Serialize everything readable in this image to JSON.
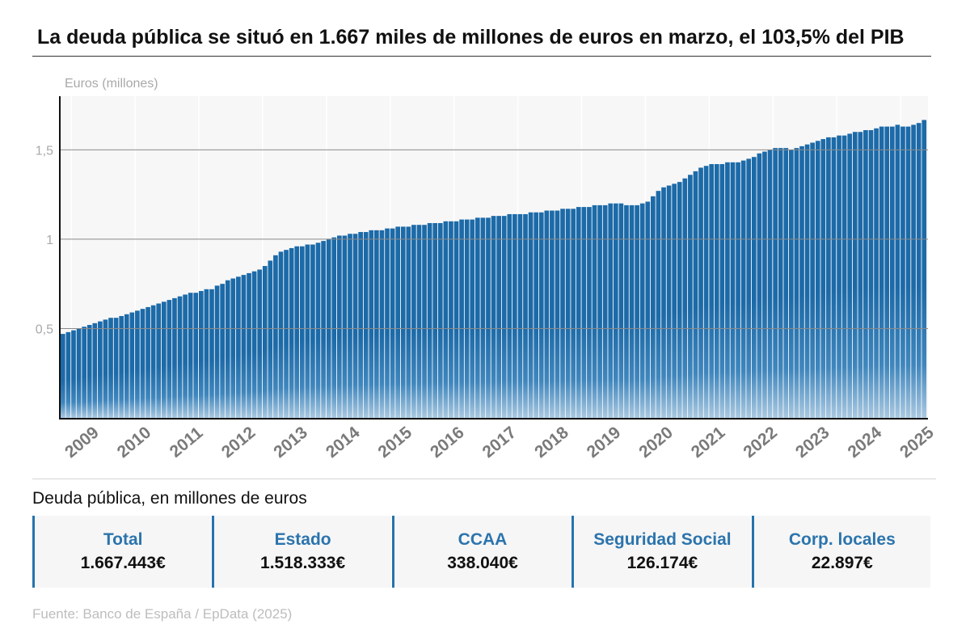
{
  "title": "La deuda pública se situó en 1.667 miles de millones de euros en marzo, el 103,5% del PIB",
  "table_title": "Deuda pública, en millones de euros",
  "stats": [
    {
      "label": "Total",
      "value": "1.667.443€"
    },
    {
      "label": "Estado",
      "value": "1.518.333€"
    },
    {
      "label": "CCAA",
      "value": "338.040€"
    },
    {
      "label": "Seguridad Social",
      "value": "126.174€"
    },
    {
      "label": "Corp. locales",
      "value": "22.897€"
    }
  ],
  "source": "Fuente: Banco de España / EpData (2025)",
  "colors": {
    "bar_dark": "#1c6aa8",
    "bar_light": "#aac9e1",
    "accent": "#2b74ad"
  },
  "chart_data": {
    "type": "bar",
    "ylabel": "Euros (millones)",
    "ylim": [
      0,
      1.8
    ],
    "yticks": [
      {
        "value": 0.5,
        "label": "0,5"
      },
      {
        "value": 1,
        "label": "1"
      },
      {
        "value": 1.5,
        "label": "1,5"
      }
    ],
    "xticks": [
      "2009",
      "2010",
      "2011",
      "2012",
      "2013",
      "2014",
      "2015",
      "2016",
      "2017",
      "2018",
      "2019",
      "2020",
      "2021",
      "2022",
      "2023",
      "2024",
      "2025"
    ],
    "grid": true,
    "start": "2008-11",
    "frequency": "monthly",
    "values": [
      0.47,
      0.48,
      0.49,
      0.5,
      0.51,
      0.52,
      0.53,
      0.54,
      0.55,
      0.56,
      0.56,
      0.57,
      0.58,
      0.59,
      0.6,
      0.61,
      0.62,
      0.63,
      0.64,
      0.65,
      0.66,
      0.67,
      0.68,
      0.69,
      0.7,
      0.7,
      0.71,
      0.72,
      0.72,
      0.74,
      0.75,
      0.77,
      0.78,
      0.79,
      0.8,
      0.81,
      0.82,
      0.83,
      0.85,
      0.88,
      0.91,
      0.93,
      0.94,
      0.95,
      0.96,
      0.96,
      0.97,
      0.97,
      0.98,
      0.99,
      1.0,
      1.01,
      1.02,
      1.02,
      1.03,
      1.03,
      1.04,
      1.04,
      1.05,
      1.05,
      1.05,
      1.06,
      1.06,
      1.07,
      1.07,
      1.07,
      1.08,
      1.08,
      1.08,
      1.09,
      1.09,
      1.09,
      1.1,
      1.1,
      1.1,
      1.11,
      1.11,
      1.11,
      1.12,
      1.12,
      1.12,
      1.13,
      1.13,
      1.13,
      1.14,
      1.14,
      1.14,
      1.14,
      1.15,
      1.15,
      1.15,
      1.16,
      1.16,
      1.16,
      1.17,
      1.17,
      1.17,
      1.18,
      1.18,
      1.18,
      1.19,
      1.19,
      1.19,
      1.2,
      1.2,
      1.2,
      1.19,
      1.19,
      1.19,
      1.2,
      1.21,
      1.24,
      1.27,
      1.29,
      1.3,
      1.31,
      1.32,
      1.34,
      1.36,
      1.38,
      1.4,
      1.41,
      1.42,
      1.42,
      1.42,
      1.43,
      1.43,
      1.43,
      1.44,
      1.45,
      1.46,
      1.48,
      1.49,
      1.5,
      1.51,
      1.51,
      1.51,
      1.5,
      1.51,
      1.52,
      1.53,
      1.54,
      1.55,
      1.56,
      1.57,
      1.57,
      1.58,
      1.58,
      1.59,
      1.6,
      1.6,
      1.61,
      1.61,
      1.62,
      1.63,
      1.63,
      1.63,
      1.64,
      1.63,
      1.63,
      1.64,
      1.65,
      1.667
    ]
  }
}
